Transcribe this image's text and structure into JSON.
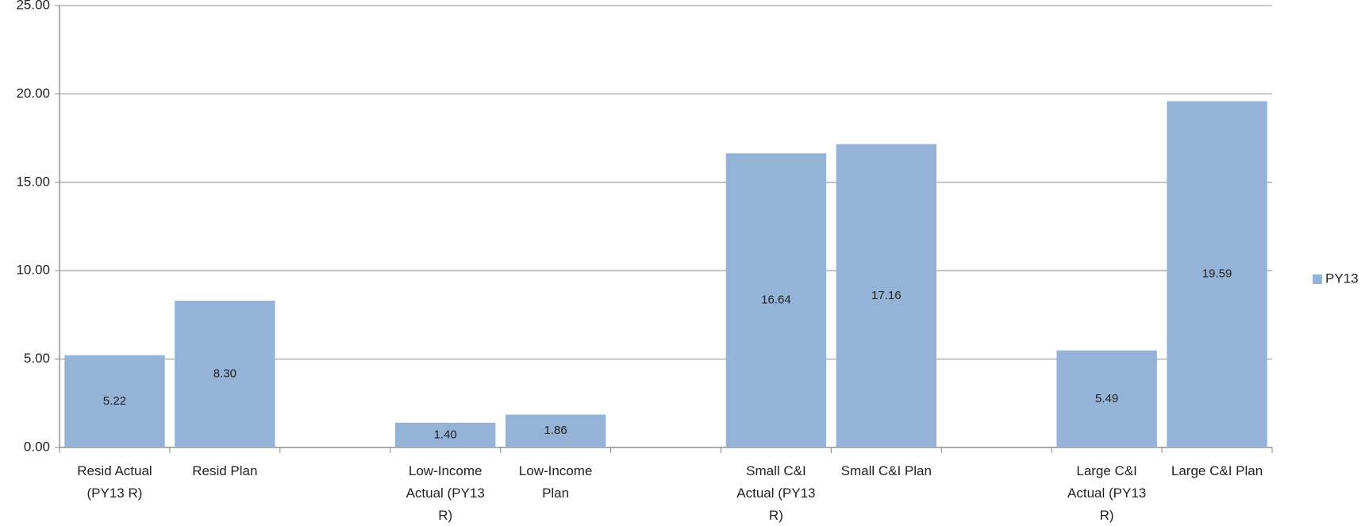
{
  "chart_data": {
    "type": "bar",
    "categories": [
      "Resid Actual (PY13 R)",
      "Resid Plan",
      null,
      "Low-Income Actual (PY13 R)",
      "Low-Income Plan",
      null,
      "Small C&I Actual (PY13 R)",
      "Small C&I Plan",
      null,
      "Large C&I Actual (PY13 R)",
      "Large C&I Plan"
    ],
    "series": [
      {
        "name": "PY13",
        "color": "#95b3d7",
        "values": [
          5.22,
          8.3,
          null,
          1.4,
          1.86,
          null,
          16.64,
          17.16,
          null,
          5.49,
          19.59
        ],
        "value_labels": [
          "5.22",
          "8.30",
          null,
          "1.40",
          "1.86",
          null,
          "16.64",
          "17.16",
          null,
          "5.49",
          "19.59"
        ]
      }
    ],
    "ylim": [
      0,
      25
    ],
    "yticks": [
      {
        "value": 0,
        "label": "0.00"
      },
      {
        "value": 5,
        "label": "5.00"
      },
      {
        "value": 10,
        "label": "10.00"
      },
      {
        "value": 15,
        "label": "15.00"
      },
      {
        "value": 20,
        "label": "20.00"
      },
      {
        "value": 25,
        "label": "25.00"
      }
    ],
    "grid": true,
    "legend": "right"
  }
}
